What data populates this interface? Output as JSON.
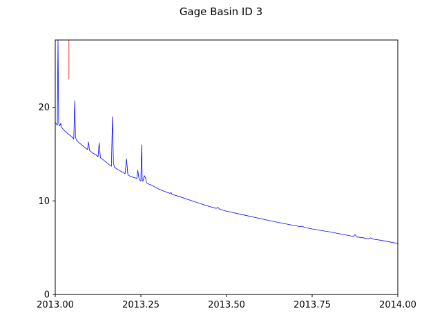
{
  "chart_data": {
    "type": "line",
    "title": "Gage Basin ID 3",
    "xlabel": "",
    "ylabel": "",
    "xlim": [
      2013.0,
      2014.0
    ],
    "ylim": [
      0,
      27.2
    ],
    "x_ticks": [
      2013.0,
      2013.25,
      2013.5,
      2013.75,
      2014.0
    ],
    "x_tick_labels": [
      "2013.00",
      "2013.25",
      "2013.50",
      "2013.75",
      "2014.00"
    ],
    "y_ticks": [
      0,
      10,
      20
    ],
    "y_tick_labels": [
      "0",
      "10",
      "20"
    ],
    "grid": false,
    "series": [
      {
        "color": "#0000ff",
        "x": [
          2013.0,
          2013.004,
          2013.006,
          2013.008,
          2013.01,
          2013.013,
          2013.016,
          2013.018,
          2013.022,
          2013.03,
          2013.04,
          2013.05,
          2013.054,
          2013.057,
          2013.059,
          2013.062,
          2013.07,
          2013.08,
          2013.09,
          2013.094,
          2013.097,
          2013.1,
          2013.11,
          2013.12,
          2013.125,
          2013.128,
          2013.132,
          2013.14,
          2013.15,
          2013.16,
          2013.164,
          2013.167,
          2013.17,
          2013.173,
          2013.18,
          2013.19,
          2013.2,
          2013.204,
          2013.208,
          2013.212,
          2013.22,
          2013.23,
          2013.238,
          2013.241,
          2013.244,
          2013.247,
          2013.25,
          2013.252,
          2013.254,
          2013.256,
          2013.26,
          2013.263,
          2013.267,
          2013.28,
          2013.3,
          2013.32,
          2013.335,
          2013.338,
          2013.341,
          2013.36,
          2013.4,
          2013.45,
          2013.47,
          2013.475,
          2013.48,
          2013.5,
          2013.55,
          2013.6,
          2013.65,
          2013.7,
          2013.715,
          2013.72,
          2013.73,
          2013.75,
          2013.8,
          2013.85,
          2013.87,
          2013.875,
          2013.88,
          2013.9,
          2013.915,
          2013.92,
          2013.93,
          2013.95,
          2014.0
        ],
        "y": [
          18.4,
          18.2,
          18.1,
          27.2,
          18.3,
          18.0,
          18.3,
          17.9,
          17.7,
          17.4,
          17.1,
          16.8,
          16.6,
          20.7,
          16.8,
          16.5,
          16.2,
          15.9,
          15.6,
          15.5,
          16.3,
          15.4,
          15.1,
          14.9,
          14.7,
          16.2,
          14.6,
          14.4,
          14.1,
          13.8,
          13.7,
          19.0,
          14.0,
          13.6,
          13.4,
          13.2,
          13.0,
          12.9,
          14.5,
          12.8,
          12.6,
          12.5,
          12.4,
          13.3,
          12.5,
          12.2,
          12.1,
          16.0,
          12.3,
          12.1,
          12.7,
          12.5,
          11.9,
          11.7,
          11.3,
          11.0,
          10.8,
          10.9,
          10.7,
          10.5,
          10.0,
          9.4,
          9.2,
          9.3,
          9.1,
          8.9,
          8.5,
          8.1,
          7.7,
          7.35,
          7.25,
          7.3,
          7.15,
          7.0,
          6.7,
          6.35,
          6.2,
          6.4,
          6.15,
          6.05,
          5.95,
          6.05,
          5.9,
          5.8,
          5.45
        ]
      },
      {
        "color": "#ff0000",
        "x": [
          2013.04,
          2013.04
        ],
        "y": [
          23.0,
          27.2
        ]
      }
    ]
  }
}
